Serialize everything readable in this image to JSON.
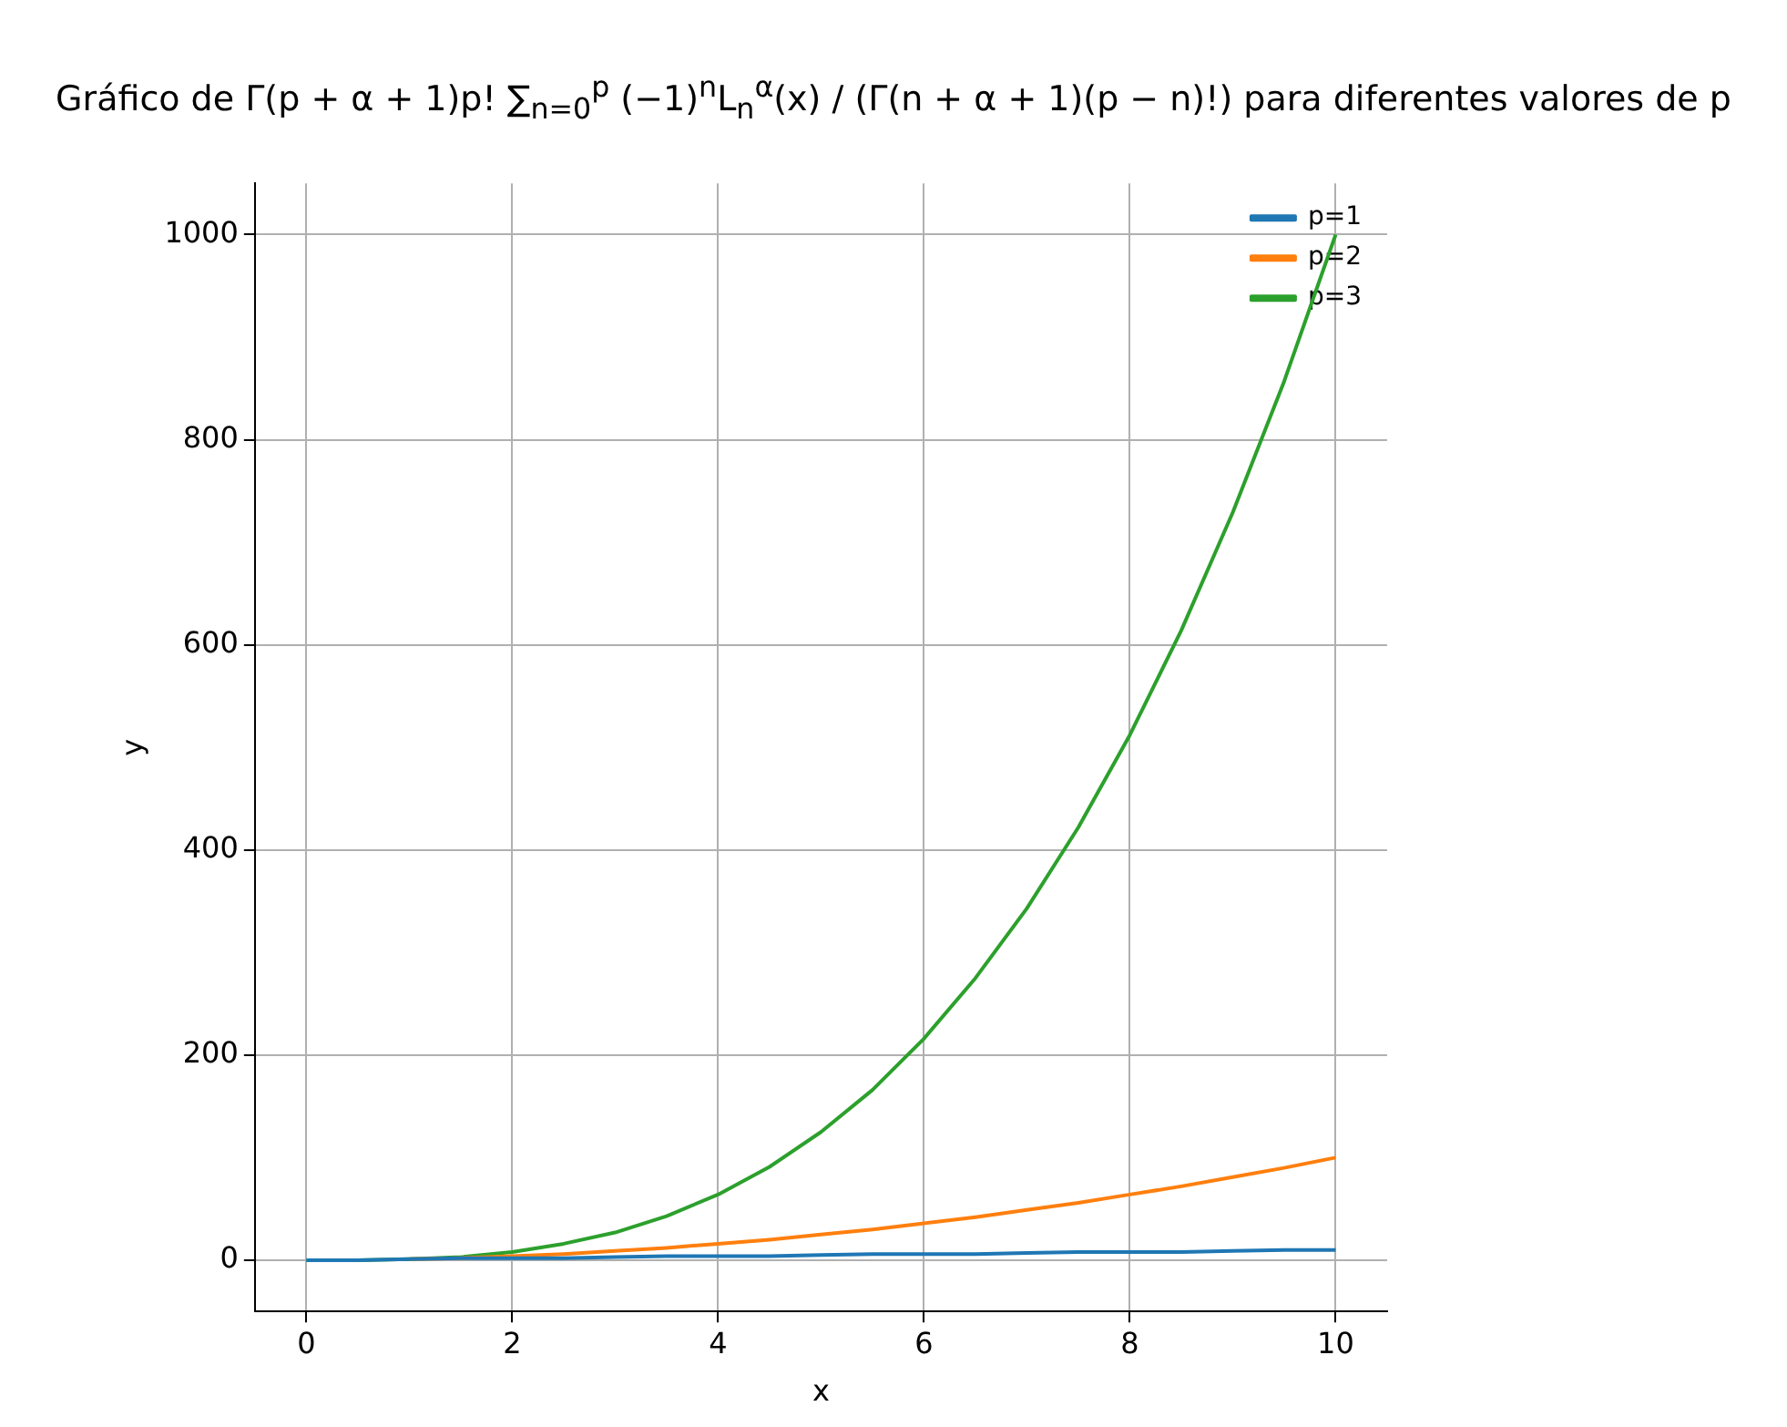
{
  "chart_data": {
    "type": "line",
    "title": "Gráfico de Γ(p + α + 1)p! ∑$_{n=0}$$^{p}$ (−1)$^{n}$L$_{n}$$^{α}$(x) / (Γ(n + α + 1)(p − n)!) para diferentes valores de p",
    "xlabel": "x",
    "ylabel": "y",
    "x": [
      0,
      0.5,
      1,
      1.5,
      2,
      2.5,
      3,
      3.5,
      4,
      4.5,
      5,
      5.5,
      6,
      6.5,
      7,
      7.5,
      8,
      8.5,
      9,
      9.5,
      10
    ],
    "series": [
      {
        "name": "p=1",
        "color": "#1f77b4",
        "values": [
          0,
          0,
          1,
          2,
          2,
          2,
          3,
          4,
          4,
          4,
          5,
          6,
          6,
          6,
          7,
          8,
          8,
          8,
          9,
          10,
          10
        ]
      },
      {
        "name": "p=2",
        "color": "#ff7f0e",
        "values": [
          null,
          null,
          1,
          2,
          4,
          6,
          9,
          12,
          16,
          20,
          25,
          30,
          36,
          42,
          49,
          56,
          64,
          72,
          81,
          90,
          100
        ]
      },
      {
        "name": "p=3",
        "color": "#2ca02c",
        "values": [
          0,
          0,
          1,
          3,
          8,
          16,
          27,
          43,
          64,
          91,
          125,
          166,
          216,
          275,
          343,
          422,
          512,
          614,
          729,
          857,
          1000
        ]
      }
    ],
    "xlim": [
      -0.5,
      10.5
    ],
    "xticks": [
      0,
      2,
      4,
      6,
      8,
      10
    ],
    "ylim": [
      -50,
      1050
    ],
    "yticks": [
      0,
      200,
      400,
      600,
      800,
      1000
    ],
    "grid": true,
    "legend": "top right",
    "marker": "none",
    "line_style": "solid"
  }
}
